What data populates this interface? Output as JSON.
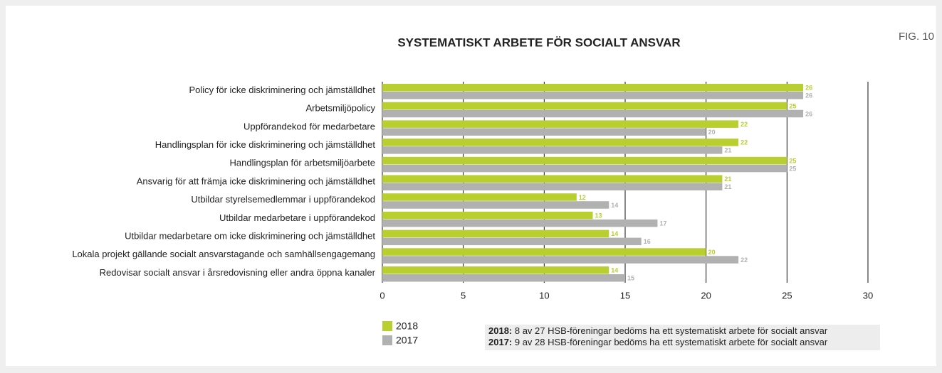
{
  "chart_data": {
    "type": "hbar",
    "title": "SYSTEMATISKT ARBETE FÖR SOCIALT ANSVAR",
    "figure_label": "FIG. 10",
    "categories": [
      "Policy för icke diskriminering och jämställdhet",
      "Arbetsmiljöpolicy",
      "Uppförandekod för medarbetare",
      "Handlingsplan för icke diskriminering och jämställdhet",
      "Handlingsplan för arbetsmiljöarbete",
      "Ansvarig för att främja icke diskriminering och jämställdhet",
      "Utbildar styrelsemedlemmar i uppförandekod",
      "Utbildar medarbetare i uppförandekod",
      "Utbildar medarbetare om icke diskriminering och jämställdhet",
      "Lokala projekt gällande socialt ansvarstagande och samhällsengagemang",
      "Redovisar socialt ansvar i årsredovisning eller andra öppna kanaler"
    ],
    "series": [
      {
        "name": "2018",
        "color": "#b8cf2f",
        "values": [
          26,
          25,
          22,
          22,
          25,
          21,
          12,
          13,
          14,
          20,
          14
        ]
      },
      {
        "name": "2017",
        "color": "#b1b1b1",
        "values": [
          26,
          26,
          20,
          21,
          25,
          21,
          14,
          17,
          16,
          22,
          15
        ]
      }
    ],
    "xlim": [
      0,
      30
    ],
    "xticks": [
      0,
      5,
      10,
      15,
      20,
      25,
      30
    ],
    "grid": true,
    "legend": "bottom-left",
    "notes": [
      {
        "label": "2018:",
        "text": " 8 av 27 HSB-föreningar bedöms ha ett systematiskt arbete för socialt ansvar"
      },
      {
        "label": "2017:",
        "text": " 9 av 28 HSB-föreningar bedöms ha ett systematiskt arbete för socialt ansvar"
      }
    ]
  }
}
